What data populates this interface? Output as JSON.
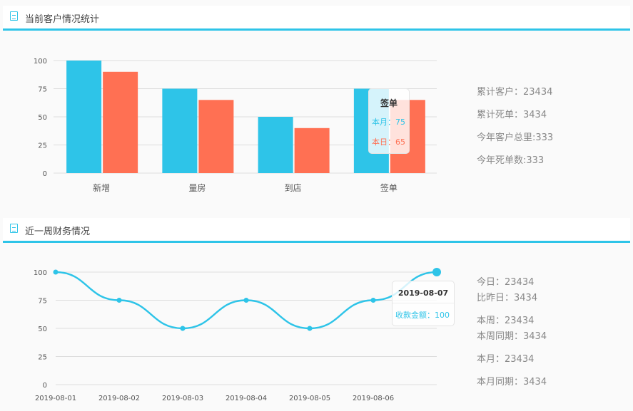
{
  "section1": {
    "title": "当前客户情况统计",
    "stats": [
      "累计客户：23434",
      "累计死单：3434",
      "今年客户总里:333",
      "今年死单数:333"
    ]
  },
  "section2": {
    "title": "近一周财务情况",
    "stats": [
      "今日：23434",
      "比昨日：3434",
      "本周：23434",
      "本周同期：3434",
      "本月：23434",
      "本月同期：3434"
    ]
  },
  "colors": {
    "accent": "#2ec4e8",
    "secondary": "#ff7053"
  },
  "chart_data": [
    {
      "type": "bar",
      "categories": [
        "新增",
        "量房",
        "到店",
        "签单"
      ],
      "series": [
        {
          "name": "本月",
          "values": [
            100,
            75,
            50,
            75
          ]
        },
        {
          "name": "本日",
          "values": [
            90,
            65,
            40,
            65
          ]
        }
      ],
      "ylim": [
        0,
        100
      ],
      "yticks": [
        0,
        25,
        50,
        75,
        100
      ],
      "grid": true,
      "tooltip": {
        "title": "签单",
        "rows": [
          {
            "label": "本月",
            "value": "75"
          },
          {
            "label": "本日",
            "value": "65"
          }
        ]
      }
    },
    {
      "type": "line",
      "x": [
        "2019-08-01",
        "2019-08-02",
        "2019-08-03",
        "2019-08-04",
        "2019-08-05",
        "2019-08-06",
        "2019-08-07"
      ],
      "xticks": [
        "2019-08-01",
        "2019-08-02",
        "2019-08-03",
        "2019-08-04",
        "2019-08-05",
        "2019-08-06"
      ],
      "series": [
        {
          "name": "收款金额",
          "values": [
            100,
            75,
            50,
            75,
            50,
            75,
            100
          ]
        }
      ],
      "ylim": [
        0,
        100
      ],
      "yticks": [
        0,
        25,
        50,
        75,
        100
      ],
      "grid": true,
      "tooltip": {
        "title": "2019-08-07",
        "label": "收款金额",
        "value": "100"
      }
    }
  ]
}
